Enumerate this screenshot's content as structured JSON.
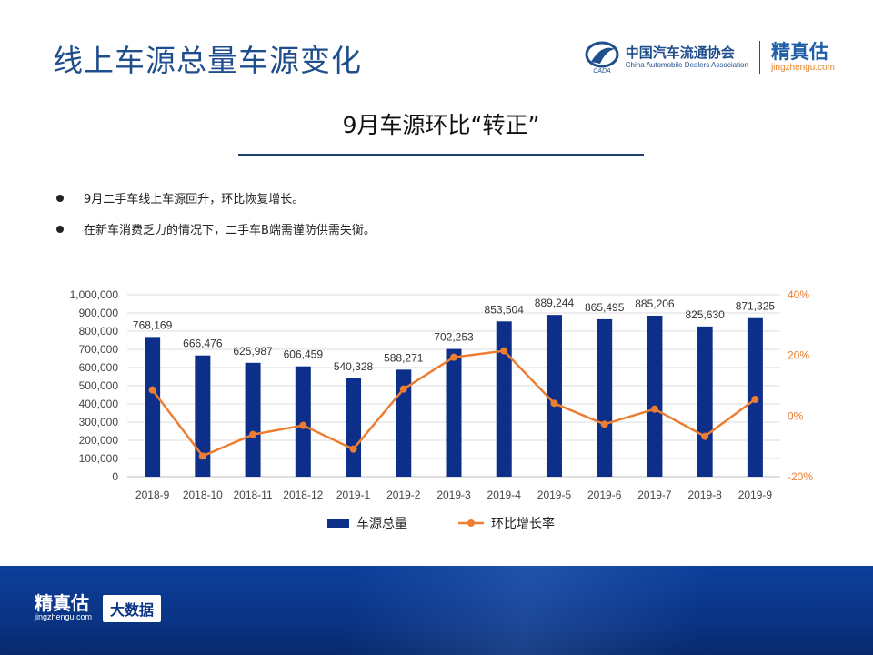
{
  "header": {
    "title": "线上车源总量车源变化",
    "cada_name_cn": "中国汽车流通协会",
    "cada_name_en": "China Automobile Dealers Association",
    "cada_emblem_text": "CADA",
    "brand_cn": "精真估",
    "brand_url": "jingzhengu.com"
  },
  "subtitle": "9月车源环比“转正”",
  "bullets": [
    "9月二手车线上车源回升，环比恢复增长。",
    "在新车消费乏力的情况下，二手车B端需谨防供需失衡。"
  ],
  "chart_data": {
    "type": "bar+line",
    "categories": [
      "2018-9",
      "2018-10",
      "2018-11",
      "2018-12",
      "2019-1",
      "2019-2",
      "2019-3",
      "2019-4",
      "2019-5",
      "2019-6",
      "2019-7",
      "2019-8",
      "2019-9"
    ],
    "series": [
      {
        "name": "车源总量",
        "type": "bar",
        "axis": "left",
        "color": "#0d2f8a",
        "values": [
          768169,
          666476,
          625987,
          606459,
          540328,
          588271,
          702253,
          853504,
          889244,
          865495,
          885206,
          825630,
          871325
        ],
        "labels": [
          "768,169",
          "666,476",
          "625,987",
          "606,459",
          "540,328",
          "588,271",
          "702,253",
          "853,504",
          "889,244",
          "865,495",
          "885,206",
          "825,630",
          "871,325"
        ]
      },
      {
        "name": "环比增长率",
        "type": "line",
        "axis": "right",
        "color": "#ed7d31",
        "values": [
          8.6,
          -13.2,
          -6.1,
          -3.1,
          -10.9,
          8.9,
          19.4,
          21.5,
          4.2,
          -2.7,
          2.3,
          -6.7,
          5.5
        ]
      }
    ],
    "y_left": {
      "min": 0,
      "max": 1000000,
      "ticks": [
        "0",
        "100,000",
        "200,000",
        "300,000",
        "400,000",
        "500,000",
        "600,000",
        "700,000",
        "800,000",
        "900,000",
        "1,000,000"
      ]
    },
    "y_right": {
      "min": -20,
      "max": 40,
      "ticks": [
        "-20%",
        "0%",
        "20%",
        "40%"
      ],
      "color": "#ed7d31"
    },
    "legend_position": "bottom",
    "grid": true
  },
  "footer": {
    "brand_cn": "精真估",
    "brand_url": "jingzhengu.com",
    "tag": "大数据"
  }
}
